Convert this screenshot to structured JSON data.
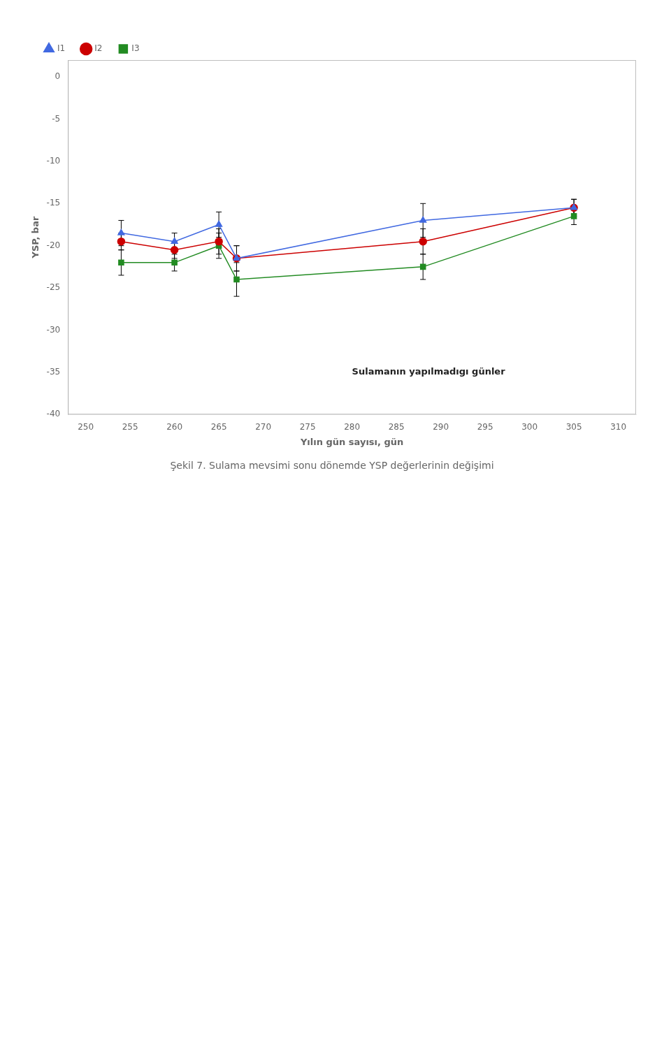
{
  "chart_data": {
    "type": "line",
    "title": "Şekil 7. Sulama mevsimi sonu dönemde YSP değerlerinin değişimi",
    "xlabel": "Yılın gün sayısı, gün",
    "ylabel": "YSP, bar",
    "x": [
      254,
      260,
      265,
      267,
      288,
      305
    ],
    "series": [
      {
        "name": "I1",
        "color": "#4169e1",
        "marker": "triangle",
        "values": [
          -18.5,
          -19.5,
          -17.5,
          -21.5,
          -17.0,
          -15.5
        ],
        "errors": [
          1.5,
          1.0,
          1.5,
          1.5,
          2.0,
          1.0
        ]
      },
      {
        "name": "I2",
        "color": "#cc0000",
        "marker": "circle",
        "values": [
          -19.5,
          -20.5,
          -19.5,
          -21.5,
          -19.5,
          -15.5
        ],
        "errors": [
          1.0,
          1.0,
          1.5,
          1.5,
          1.5,
          1.0
        ]
      },
      {
        "name": "I3",
        "color": "#228B22",
        "marker": "square",
        "values": [
          -22.0,
          -22.0,
          -20.0,
          -24.0,
          -22.5,
          -16.5
        ],
        "errors": [
          1.5,
          1.0,
          1.5,
          2.0,
          1.5,
          1.0
        ]
      }
    ],
    "xlim": [
      248,
      312
    ],
    "ylim": [
      -40,
      2
    ],
    "xticks": [
      250,
      255,
      260,
      265,
      270,
      275,
      280,
      285,
      290,
      295,
      300,
      305,
      310
    ],
    "yticks": [
      0,
      -5,
      -10,
      -15,
      -20,
      -25,
      -30,
      -35,
      -40
    ],
    "annotations": [
      {
        "text": "Sulamanın yapılmadıgı günler",
        "x": 280,
        "y": -35
      }
    ],
    "grid": false,
    "legend": "upper left"
  }
}
